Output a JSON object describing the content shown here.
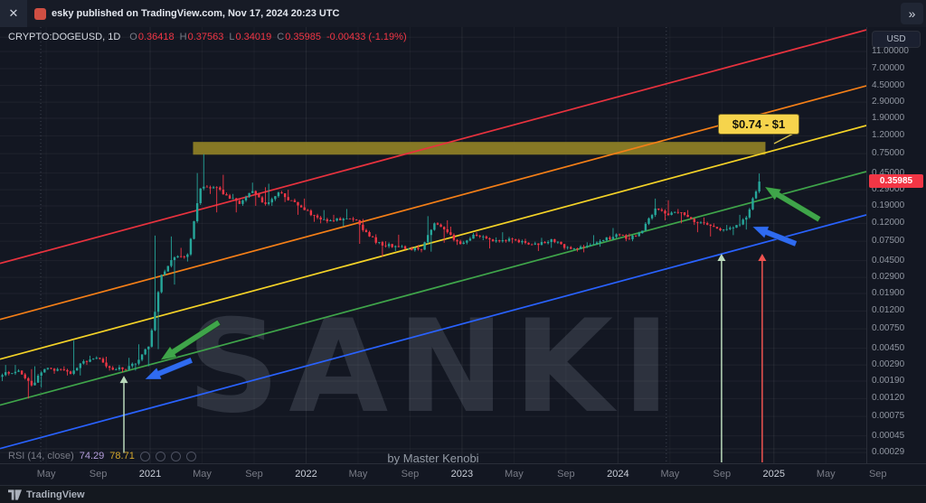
{
  "header": {
    "published_text": "esky published on TradingView.com, Nov 17, 2024 20:23 UTC",
    "close_icon": "✕",
    "expand_icon": "»"
  },
  "legend": {
    "symbol": "CRYPTO:DOGEUSD, 1D",
    "items": [
      {
        "k": "O",
        "v": "0.36418"
      },
      {
        "k": "H",
        "v": "0.37563"
      },
      {
        "k": "L",
        "v": "0.34019"
      },
      {
        "k": "C",
        "v": "0.35985"
      }
    ],
    "change": "-0.00433 (-1.19%)"
  },
  "rsi": {
    "label": "RSI (14, close)",
    "values": [
      "74.29",
      "78.71"
    ]
  },
  "watermark": "SANKI",
  "byline": "by Master Kenobi",
  "annotation": {
    "target_label": "$0.74 - $1"
  },
  "price_axis": {
    "currency": "USD",
    "last_price": "0.35985"
  },
  "footer": {
    "brand": "TradingView"
  },
  "colors": {
    "background": "#131722",
    "up": "#26a69a",
    "down": "#f23645",
    "badge": "#f23645",
    "zone": "#8c7d26",
    "callout_bg": "#f6d44c"
  },
  "chart_data": {
    "type": "candlestick",
    "symbol": "CRYPTO:DOGEUSD",
    "interval": "1D",
    "price_scale": "logarithmic",
    "start_month": "2020-01",
    "ylim": [
      0.0002,
      21
    ],
    "ohlc_monthly": [
      [
        0.002,
        0.0029,
        0.0019,
        0.0024
      ],
      [
        0.0024,
        0.0029,
        0.0022,
        0.0025
      ],
      [
        0.0025,
        0.0026,
        0.0012,
        0.0017
      ],
      [
        0.0017,
        0.0028,
        0.0016,
        0.0026
      ],
      [
        0.0026,
        0.0027,
        0.0023,
        0.0026
      ],
      [
        0.0026,
        0.0028,
        0.0022,
        0.0023
      ],
      [
        0.0023,
        0.0055,
        0.0022,
        0.0032
      ],
      [
        0.0032,
        0.0037,
        0.0029,
        0.0035
      ],
      [
        0.0035,
        0.0036,
        0.0025,
        0.0027
      ],
      [
        0.0027,
        0.0029,
        0.0024,
        0.0026
      ],
      [
        0.0026,
        0.0035,
        0.0025,
        0.003
      ],
      [
        0.003,
        0.005,
        0.0028,
        0.0047
      ],
      [
        0.0047,
        0.087,
        0.0044,
        0.031
      ],
      [
        0.031,
        0.085,
        0.024,
        0.049
      ],
      [
        0.049,
        0.063,
        0.044,
        0.053
      ],
      [
        0.053,
        0.45,
        0.051,
        0.3
      ],
      [
        0.3,
        0.74,
        0.26,
        0.31
      ],
      [
        0.31,
        0.43,
        0.16,
        0.25
      ],
      [
        0.25,
        0.26,
        0.16,
        0.2
      ],
      [
        0.2,
        0.35,
        0.19,
        0.28
      ],
      [
        0.28,
        0.31,
        0.19,
        0.2
      ],
      [
        0.2,
        0.34,
        0.19,
        0.27
      ],
      [
        0.27,
        0.29,
        0.21,
        0.22
      ],
      [
        0.22,
        0.23,
        0.15,
        0.17
      ],
      [
        0.17,
        0.175,
        0.125,
        0.14
      ],
      [
        0.14,
        0.17,
        0.12,
        0.13
      ],
      [
        0.13,
        0.15,
        0.11,
        0.135
      ],
      [
        0.135,
        0.175,
        0.125,
        0.13
      ],
      [
        0.13,
        0.135,
        0.07,
        0.085
      ],
      [
        0.085,
        0.09,
        0.05,
        0.067
      ],
      [
        0.067,
        0.075,
        0.058,
        0.066
      ],
      [
        0.066,
        0.089,
        0.06,
        0.062
      ],
      [
        0.062,
        0.068,
        0.056,
        0.06
      ],
      [
        0.06,
        0.145,
        0.057,
        0.12
      ],
      [
        0.12,
        0.13,
        0.072,
        0.095
      ],
      [
        0.095,
        0.11,
        0.068,
        0.07
      ],
      [
        0.07,
        0.093,
        0.069,
        0.089
      ],
      [
        0.089,
        0.095,
        0.077,
        0.081
      ],
      [
        0.081,
        0.083,
        0.062,
        0.075
      ],
      [
        0.075,
        0.095,
        0.071,
        0.079
      ],
      [
        0.079,
        0.08,
        0.069,
        0.072
      ],
      [
        0.072,
        0.074,
        0.058,
        0.068
      ],
      [
        0.068,
        0.082,
        0.063,
        0.079
      ],
      [
        0.079,
        0.08,
        0.06,
        0.063
      ],
      [
        0.063,
        0.066,
        0.057,
        0.061
      ],
      [
        0.061,
        0.073,
        0.056,
        0.068
      ],
      [
        0.068,
        0.088,
        0.065,
        0.077
      ],
      [
        0.077,
        0.106,
        0.074,
        0.09
      ],
      [
        0.09,
        0.092,
        0.075,
        0.079
      ],
      [
        0.079,
        0.099,
        0.075,
        0.099
      ],
      [
        0.099,
        0.23,
        0.098,
        0.177
      ],
      [
        0.177,
        0.22,
        0.13,
        0.15
      ],
      [
        0.15,
        0.175,
        0.12,
        0.16
      ],
      [
        0.16,
        0.17,
        0.115,
        0.124
      ],
      [
        0.124,
        0.14,
        0.095,
        0.116
      ],
      [
        0.116,
        0.12,
        0.085,
        0.1
      ],
      [
        0.1,
        0.115,
        0.088,
        0.107
      ],
      [
        0.107,
        0.15,
        0.102,
        0.14
      ],
      [
        0.14,
        0.445,
        0.135,
        0.35985
      ]
    ],
    "last_candle": {
      "open": 0.36418,
      "high": 0.37563,
      "low": 0.34019,
      "close": 0.35985,
      "change": -0.00433,
      "change_pct": -1.19
    },
    "price_ticks": [
      "16.00000",
      "11.00000",
      "7.00000",
      "4.50000",
      "2.90000",
      "1.90000",
      "1.20000",
      "0.75000",
      "0.45000",
      "0.29000",
      "0.19000",
      "0.12000",
      "0.07500",
      "0.04500",
      "0.02900",
      "0.01900",
      "0.01200",
      "0.00750",
      "0.00450",
      "0.00290",
      "0.00190",
      "0.00120",
      "0.00075",
      "0.00045",
      "0.00029"
    ],
    "time_ticks": [
      {
        "label": "May",
        "month_index": 4,
        "major": false
      },
      {
        "label": "Sep",
        "month_index": 8,
        "major": false
      },
      {
        "label": "2021",
        "month_index": 12,
        "major": true
      },
      {
        "label": "May",
        "month_index": 16,
        "major": false
      },
      {
        "label": "Sep",
        "month_index": 20,
        "major": false
      },
      {
        "label": "2022",
        "month_index": 24,
        "major": true
      },
      {
        "label": "May",
        "month_index": 28,
        "major": false
      },
      {
        "label": "Sep",
        "month_index": 32,
        "major": false
      },
      {
        "label": "2023",
        "month_index": 36,
        "major": true
      },
      {
        "label": "May",
        "month_index": 40,
        "major": false
      },
      {
        "label": "Sep",
        "month_index": 44,
        "major": false
      },
      {
        "label": "2024",
        "month_index": 48,
        "major": true
      },
      {
        "label": "May",
        "month_index": 52,
        "major": false
      },
      {
        "label": "Sep",
        "month_index": 56,
        "major": false
      },
      {
        "label": "2025",
        "month_index": 60,
        "major": true
      },
      {
        "label": "May",
        "month_index": 64,
        "major": false
      },
      {
        "label": "Sep",
        "month_index": 68,
        "major": false
      }
    ],
    "channel_lines": [
      {
        "name": "red",
        "color": "#e8323e",
        "price_at_left_edge": 0.0419,
        "price_at_right_edge": 19.4
      },
      {
        "name": "orange",
        "color": "#f57f17",
        "price_at_left_edge": 0.0096,
        "price_at_right_edge": 4.46
      },
      {
        "name": "yellow",
        "color": "#f5d327",
        "price_at_left_edge": 0.00338,
        "price_at_right_edge": 1.57
      },
      {
        "name": "green",
        "color": "#3fa54a",
        "price_at_left_edge": 0.00101,
        "price_at_right_edge": 0.468
      },
      {
        "name": "blue",
        "color": "#2962ff",
        "price_at_left_edge": 0.000322,
        "price_at_right_edge": 0.1497
      }
    ],
    "resistance_zone": {
      "label": "$0.74 - $1",
      "price_top": 1.02,
      "price_bottom": 0.73,
      "from_month_index": 15.3,
      "to_month_index": 59.35,
      "color": "#8c7d26"
    },
    "arrows": [
      {
        "name": "green-arrow-2021",
        "style": "pointer",
        "color": "#3fa54a",
        "tip_month": 12.8,
        "tip_price": 0.0033,
        "tail_month": 17.3,
        "tail_price": 0.0089
      },
      {
        "name": "blue-arrow-2021",
        "style": "pointer",
        "color": "#2f6bf0",
        "tip_month": 11.6,
        "tip_price": 0.00199,
        "tail_month": 15.2,
        "tail_price": 0.0033
      },
      {
        "name": "green-arrow-2024",
        "style": "pointer",
        "color": "#3fa54a",
        "tip_month": 59.3,
        "tip_price": 0.313,
        "tail_month": 63.5,
        "tail_price": 0.133
      },
      {
        "name": "blue-arrow-2024",
        "style": "pointer",
        "color": "#2f6bf0",
        "tip_month": 58.35,
        "tip_price": 0.11,
        "tail_month": 61.7,
        "tail_price": 0.07
      },
      {
        "name": "vertical-arrow-2020",
        "style": "vline",
        "color": "#b9d8ba",
        "month_index": 9.98,
        "price_from": 0.000287,
        "price_to": 0.00218
      },
      {
        "name": "vertical-arrow-2024-green",
        "style": "vline",
        "color": "#b9d8ba",
        "month_index": 55.97,
        "price_from": 0.000224,
        "price_to": 0.054
      },
      {
        "name": "vertical-arrow-2024-red",
        "style": "vline",
        "color": "#ef5350",
        "month_index": 59.1,
        "price_from": 0.000224,
        "price_to": 0.054
      }
    ],
    "dashed_vlines": [
      {
        "month_index": 3.58
      },
      {
        "month_index": 51.72
      }
    ],
    "rsi_indicator": {
      "period": 14,
      "source": "close",
      "values": [
        74.29,
        78.71
      ]
    }
  }
}
